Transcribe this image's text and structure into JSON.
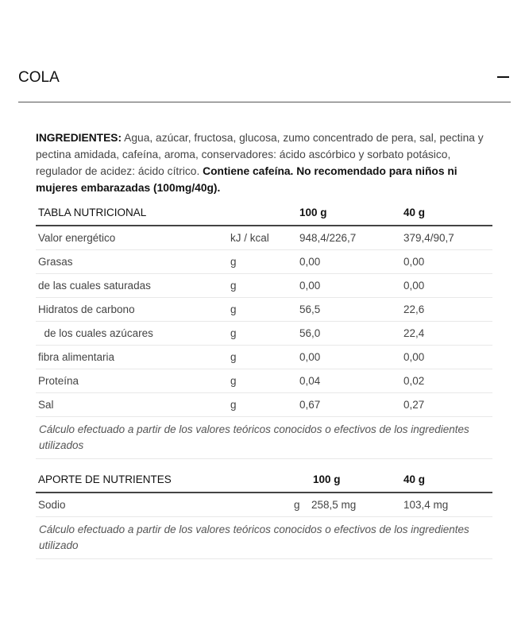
{
  "title": "COLA",
  "ingredients": {
    "label": "INGREDIENTES:",
    "text": " Agua, azúcar, fructosa, glucosa, zumo concentrado de pera, sal, pectina y pectina amidada, cafeína, aroma, conservadores: ácido ascórbico y sorbato potásico, regulador de acidez: ácido cítrico. ",
    "warning": "Contiene cafeína. No recomendado para niños ni mujeres embarazadas (100mg/40g)."
  },
  "nutrition": {
    "header": [
      "TABLA NUTRICIONAL",
      "100 g",
      "40 g"
    ],
    "rows": [
      {
        "name": "Valor energético",
        "unit": "kJ / kcal",
        "per100": "948,4/226,7",
        "per40": "379,4/90,7"
      },
      {
        "name": "Grasas",
        "unit": "g",
        "per100": "0,00",
        "per40": "0,00"
      },
      {
        "name": "de las cuales saturadas",
        "unit": "g",
        "per100": "0,00",
        "per40": "0,00"
      },
      {
        "name": "Hidratos de carbono",
        "unit": "g",
        "per100": "56,5",
        "per40": "22,6"
      },
      {
        "name": "  de los cuales azúcares",
        "unit": "g",
        "per100": "56,0",
        "per40": "22,4"
      },
      {
        "name": "fibra alimentaria",
        "unit": "g",
        "per100": "0,00",
        "per40": "0,00"
      },
      {
        "name": "Proteína",
        "unit": "g",
        "per100": "0,04",
        "per40": "0,02"
      },
      {
        "name": "Sal",
        "unit": "g",
        "per100": "0,67",
        "per40": "0,27"
      }
    ],
    "note": "Cálculo efectuado a partir de los valores teóricos conocidos o efectivos de los ingredientes utilizados"
  },
  "nutrients": {
    "header": [
      "APORTE DE NUTRIENTES",
      "100 g",
      "40 g"
    ],
    "rows": [
      {
        "name": "Sodio",
        "unit": "g",
        "per100": "258,5 mg",
        "per40": "103,4 mg"
      }
    ],
    "note": "Cálculo efectuado a partir de los valores teóricos conocidos o efectivos de los ingredientes utilizado"
  }
}
